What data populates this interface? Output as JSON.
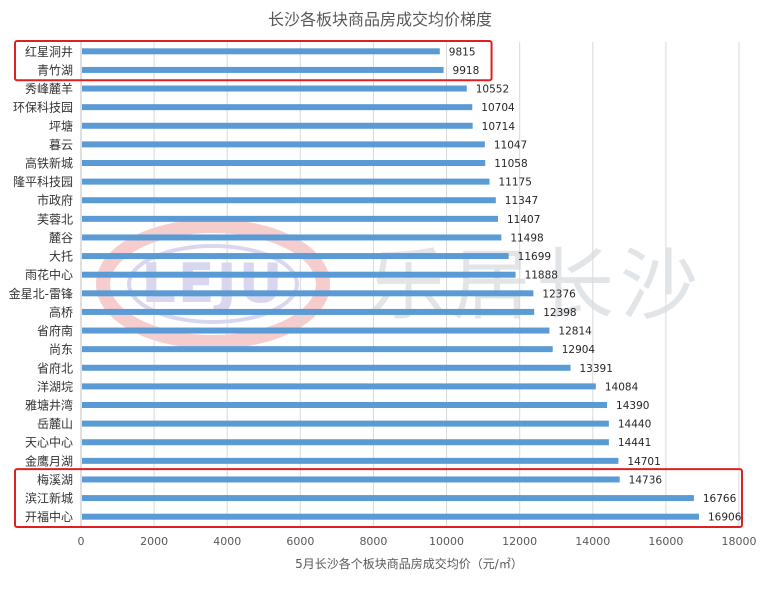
{
  "chart_data": {
    "type": "bar",
    "orientation": "horizontal",
    "title": "长沙各板块商品房成交均价梯度",
    "xlabel": "5月长沙各个板块商品房成交均价（元/㎡）",
    "ylabel": "",
    "xlim": [
      0,
      18000
    ],
    "xticks": [
      0,
      2000,
      4000,
      6000,
      8000,
      10000,
      12000,
      14000,
      16000,
      18000
    ],
    "grid": "vertical",
    "legend": "none",
    "bar_color": "#5b9bd5",
    "highlight_color": "#e02020",
    "categories": [
      "红星洞井",
      "青竹湖",
      "秀峰麓羊",
      "环保科技园",
      "坪塘",
      "暮云",
      "高铁新城",
      "隆平科技园",
      "市政府",
      "芙蓉北",
      "麓谷",
      "大托",
      "雨花中心",
      "金星北-雷锋",
      "高桥",
      "省府南",
      "尚东",
      "省府北",
      "洋湖垸",
      "雅塘井湾",
      "岳麓山",
      "天心中心",
      "金鹰月湖",
      "梅溪湖",
      "滨江新城",
      "开福中心"
    ],
    "values": [
      9815,
      9918,
      10552,
      10704,
      10714,
      11047,
      11058,
      11175,
      11347,
      11407,
      11498,
      11699,
      11888,
      12376,
      12398,
      12814,
      12904,
      13391,
      14084,
      14390,
      14440,
      14441,
      14701,
      14736,
      16766,
      16906
    ],
    "highlight_groups": [
      [
        "红星洞井",
        "青竹湖"
      ],
      [
        "梅溪湖",
        "滨江新城",
        "开福中心"
      ]
    ],
    "watermark": "LEJU 乐居长沙"
  }
}
